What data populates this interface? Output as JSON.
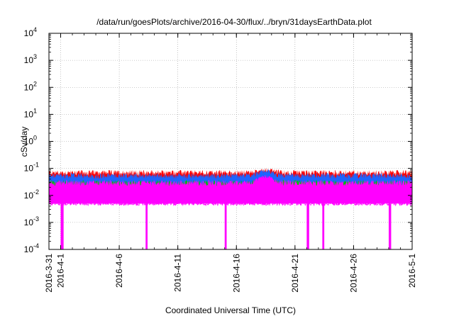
{
  "chart_data": {
    "type": "area",
    "title": "/data/run/goesPlots/archive/2016-04-30/flux/../bryn/31daysEarthData.plot",
    "xlabel": "Coordinated Universal Time (UTC)",
    "ylabel": "cSv/day",
    "y_scale": "log",
    "ylim": [
      0.0001,
      10000
    ],
    "xlim": [
      "2016-03-31",
      "2016-05-01"
    ],
    "grid": true,
    "x_ticks": [
      "2016-3-31",
      "2016-4-1",
      "2016-4-6",
      "2016-4-11",
      "2016-4-16",
      "2016-4-21",
      "2016-4-26",
      "2016-5-1"
    ],
    "y_ticks": [
      {
        "base": "10",
        "exp": "-4",
        "value": 0.0001
      },
      {
        "base": "10",
        "exp": "-3",
        "value": 0.001
      },
      {
        "base": "10",
        "exp": "-2",
        "value": 0.01
      },
      {
        "base": "10",
        "exp": "-1",
        "value": 0.1
      },
      {
        "base": "10",
        "exp": "0",
        "value": 1
      },
      {
        "base": "10",
        "exp": "1",
        "value": 10
      },
      {
        "base": "10",
        "exp": "2",
        "value": 100
      },
      {
        "base": "10",
        "exp": "3",
        "value": 1000
      },
      {
        "base": "10",
        "exp": "4",
        "value": 10000
      }
    ],
    "series": [
      {
        "color": "#ff0000",
        "typical_max": 0.07,
        "peak": 0.09
      },
      {
        "color": "#1e64ff",
        "typical_max": 0.055,
        "peak": 0.08
      },
      {
        "color": "#00c000",
        "typical_max": 0.03,
        "peak": 0.04
      },
      {
        "color": "#ff00ff",
        "typical_min": 0.005,
        "typical_max": 0.03,
        "peak": 0.05
      }
    ],
    "dropouts": [
      {
        "start": "2016-04-01 00:00",
        "end": "2016-04-01 06:00"
      },
      {
        "start": "2016-04-08 06:00",
        "end": "2016-04-08 10:00"
      },
      {
        "start": "2016-04-15 00:00",
        "end": "2016-04-15 04:00"
      },
      {
        "start": "2016-04-22 00:00",
        "end": "2016-04-22 05:00"
      },
      {
        "start": "2016-04-23 08:00",
        "end": "2016-04-23 12:00"
      },
      {
        "start": "2016-04-29 00:00",
        "end": "2016-04-29 05:00"
      }
    ]
  }
}
